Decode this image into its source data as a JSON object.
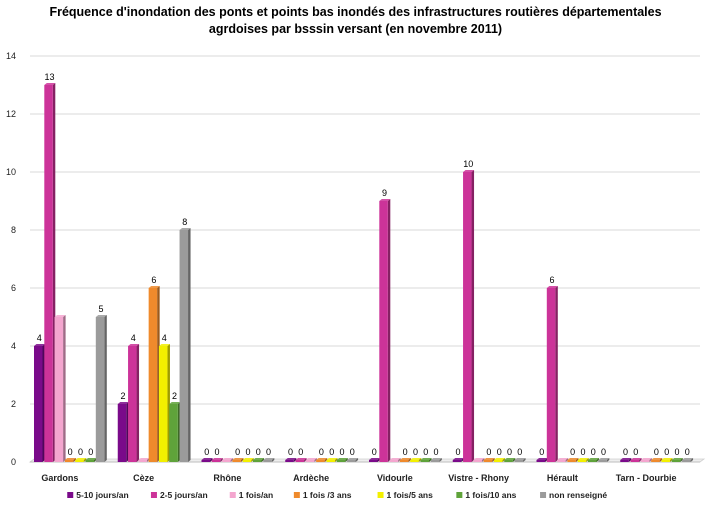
{
  "chart_data": {
    "type": "bar",
    "title_line1": "Fréquence d'inondation des ponts et points bas inondés des infrastructures routières départementales",
    "title_line2": "agrdoises par bsssin versant (en novembre 2011)",
    "xlabel": "",
    "ylabel": "",
    "ylim": [
      0,
      14
    ],
    "yticks": [
      "0",
      "2",
      "4",
      "6",
      "8",
      "10",
      "12",
      "14"
    ],
    "grid": true,
    "legend_position": "bottom",
    "categories": [
      "Gardons",
      "Cèze",
      "Rhône",
      "Ardèche",
      "Vidourle",
      "Vistre - Rhony",
      "Hérault",
      "Tarn - Dourbie"
    ],
    "series": [
      {
        "name": "5-10 jours/an",
        "color": "#7a0a8a",
        "values": [
          4,
          2,
          0,
          0,
          0,
          0,
          0,
          0
        ],
        "labels": [
          "4",
          "2",
          "0",
          "0",
          "0",
          "0",
          "0",
          "0"
        ]
      },
      {
        "name": "2-5 jours/an",
        "color": "#cc3399",
        "values": [
          13,
          4,
          0,
          0,
          9,
          10,
          6,
          0
        ],
        "labels": [
          "13",
          "4",
          "0",
          "0",
          "9",
          "10",
          "6",
          "0"
        ]
      },
      {
        "name": "1 fois/an",
        "color": "#f4a6cf",
        "values": [
          5,
          0,
          0,
          0,
          0,
          0,
          0,
          0
        ],
        "labels": [
          "",
          "",
          "",
          "",
          "",
          "",
          "",
          ""
        ]
      },
      {
        "name": "1 fois /3 ans",
        "color": "#ef8a2c",
        "values": [
          0,
          6,
          0,
          0,
          0,
          0,
          0,
          0
        ],
        "labels": [
          "0",
          "6",
          "0",
          "0",
          "0",
          "0",
          "0",
          "0"
        ]
      },
      {
        "name": "1 fois/5 ans",
        "color": "#f3f000",
        "values": [
          0,
          4,
          0,
          0,
          0,
          0,
          0,
          0
        ],
        "labels": [
          "0",
          "4",
          "0",
          "0",
          "0",
          "0",
          "0",
          "0"
        ]
      },
      {
        "name": "1 fois/10 ans",
        "color": "#5fa33a",
        "values": [
          0,
          2,
          0,
          0,
          0,
          0,
          0,
          0
        ],
        "labels": [
          "0",
          "2",
          "0",
          "0",
          "0",
          "0",
          "0",
          "0"
        ]
      },
      {
        "name": "non renseigné",
        "color": "#9b9b9b",
        "values": [
          5,
          8,
          0,
          0,
          0,
          0,
          0,
          0
        ],
        "labels": [
          "5",
          "8",
          "0",
          "0",
          "0",
          "0",
          "0",
          "0"
        ]
      }
    ]
  }
}
